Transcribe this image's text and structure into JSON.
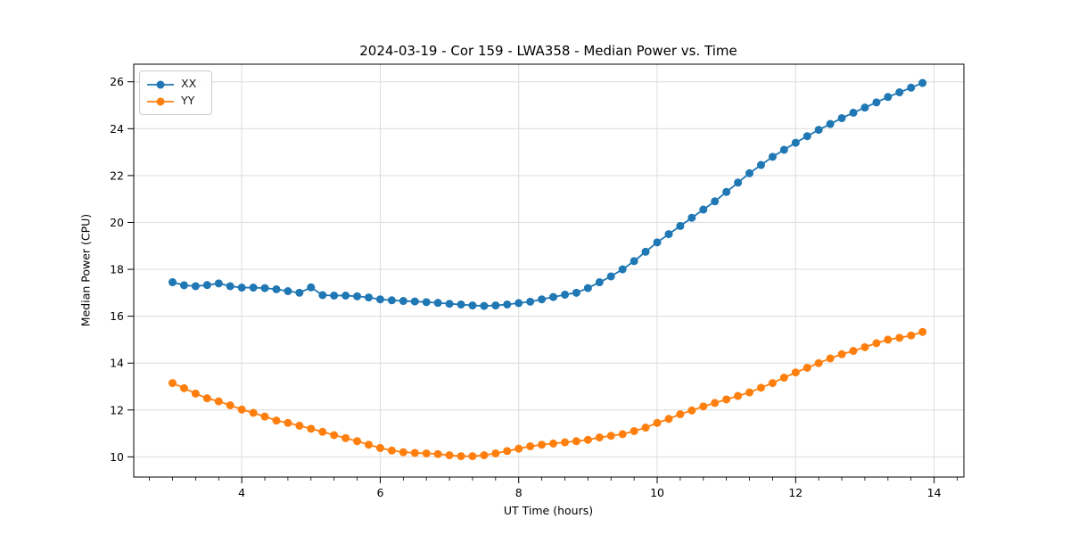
{
  "figure": {
    "kind": "matplotlib-style line chart screenshot"
  },
  "chart_data": {
    "type": "line",
    "title": "2024-03-19 - Cor 159 - LWA358 - Median Power vs. Time",
    "xlabel": "UT Time (hours)",
    "ylabel": "Median Power (CPU)",
    "xlim": [
      2.44,
      14.43
    ],
    "ylim": [
      9.14,
      26.75
    ],
    "xticks": [
      4,
      6,
      8,
      10,
      12,
      14
    ],
    "yticks": [
      10,
      12,
      14,
      16,
      18,
      20,
      22,
      24,
      26
    ],
    "x_minor_step": 0.33333,
    "grid": true,
    "grid_color": "#dcdcdc",
    "legend_position": "upper left",
    "marker": "circle",
    "x": [
      3.0,
      3.167,
      3.333,
      3.5,
      3.667,
      3.833,
      4.0,
      4.167,
      4.333,
      4.5,
      4.667,
      4.833,
      5.0,
      5.167,
      5.333,
      5.5,
      5.667,
      5.833,
      6.0,
      6.167,
      6.333,
      6.5,
      6.667,
      6.833,
      7.0,
      7.167,
      7.333,
      7.5,
      7.667,
      7.833,
      8.0,
      8.167,
      8.333,
      8.5,
      8.667,
      8.833,
      9.0,
      9.167,
      9.333,
      9.5,
      9.667,
      9.833,
      10.0,
      10.167,
      10.333,
      10.5,
      10.667,
      10.833,
      11.0,
      11.167,
      11.333,
      11.5,
      11.667,
      11.833,
      12.0,
      12.167,
      12.333,
      12.5,
      12.667,
      12.833,
      13.0,
      13.167,
      13.333,
      13.5,
      13.667,
      13.833
    ],
    "series": [
      {
        "name": "XX",
        "color": "#1f77b4",
        "values": [
          17.45,
          17.32,
          17.28,
          17.33,
          17.4,
          17.28,
          17.22,
          17.22,
          17.2,
          17.15,
          17.07,
          17.0,
          17.23,
          16.9,
          16.88,
          16.88,
          16.85,
          16.8,
          16.72,
          16.68,
          16.65,
          16.63,
          16.6,
          16.57,
          16.53,
          16.5,
          16.46,
          16.44,
          16.46,
          16.5,
          16.56,
          16.62,
          16.72,
          16.82,
          16.92,
          17.0,
          17.2,
          17.45,
          17.7,
          18.0,
          18.35,
          18.75,
          19.15,
          19.5,
          19.85,
          20.2,
          20.55,
          20.9,
          21.3,
          21.7,
          22.1,
          22.45,
          22.8,
          23.1,
          23.4,
          23.68,
          23.95,
          24.2,
          24.45,
          24.68,
          24.9,
          25.12,
          25.35,
          25.55,
          25.75,
          25.95
        ]
      },
      {
        "name": "YY",
        "color": "#ff7f0e",
        "values": [
          13.15,
          12.93,
          12.7,
          12.5,
          12.37,
          12.2,
          12.02,
          11.88,
          11.72,
          11.55,
          11.45,
          11.33,
          11.2,
          11.07,
          10.93,
          10.8,
          10.67,
          10.52,
          10.38,
          10.27,
          10.2,
          10.17,
          10.15,
          10.12,
          10.07,
          10.03,
          10.03,
          10.07,
          10.15,
          10.25,
          10.35,
          10.45,
          10.52,
          10.57,
          10.62,
          10.67,
          10.73,
          10.83,
          10.9,
          10.97,
          11.1,
          11.25,
          11.45,
          11.62,
          11.82,
          11.98,
          12.15,
          12.3,
          12.45,
          12.6,
          12.75,
          12.95,
          13.15,
          13.38,
          13.6,
          13.8,
          14.0,
          14.2,
          14.38,
          14.52,
          14.68,
          14.85,
          15.0,
          15.08,
          15.18,
          15.33
        ]
      }
    ]
  }
}
